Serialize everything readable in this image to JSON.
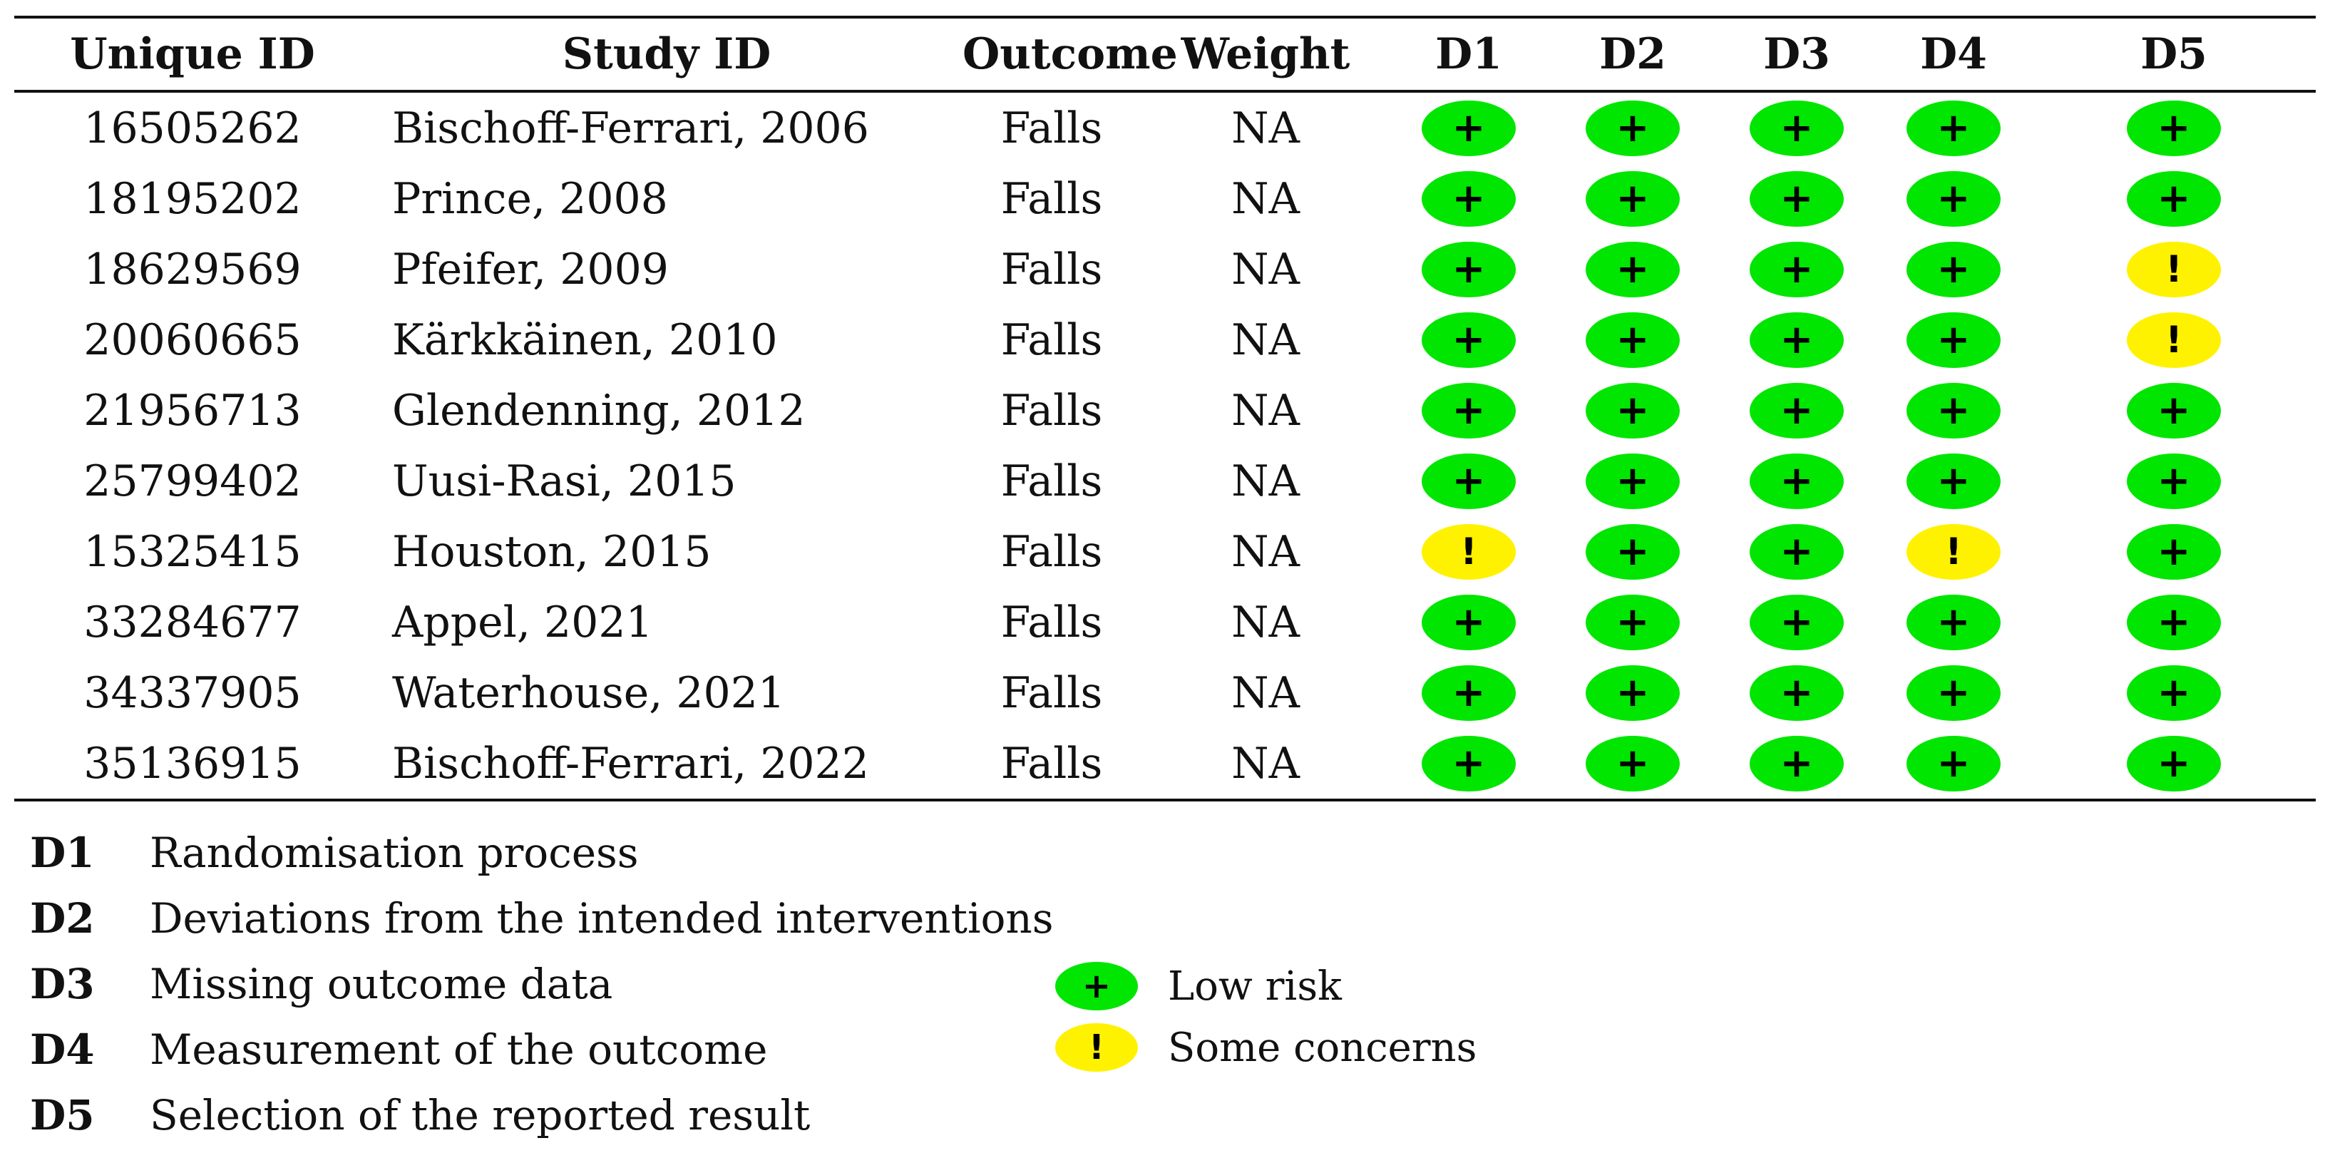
{
  "table": {
    "headers": [
      "Unique ID",
      "Study ID",
      "Outcome",
      "Weight",
      "D1",
      "D2",
      "D3",
      "D4",
      "D5"
    ],
    "rows": [
      {
        "id": "16505262",
        "study": "Bischoff-Ferrari, 2006",
        "outcome": "Falls",
        "weight": "NA",
        "d": [
          "+",
          "+",
          "+",
          "+",
          "+"
        ]
      },
      {
        "id": "18195202",
        "study": "Prince, 2008",
        "outcome": "Falls",
        "weight": "NA",
        "d": [
          "+",
          "+",
          "+",
          "+",
          "+"
        ]
      },
      {
        "id": "18629569",
        "study": "Pfeifer, 2009",
        "outcome": "Falls",
        "weight": "NA",
        "d": [
          "+",
          "+",
          "+",
          "+",
          "!"
        ]
      },
      {
        "id": "20060665",
        "study": "Kärkkäinen, 2010",
        "outcome": "Falls",
        "weight": "NA",
        "d": [
          "+",
          "+",
          "+",
          "+",
          "!"
        ]
      },
      {
        "id": "21956713",
        "study": "Glendenning, 2012",
        "outcome": "Falls",
        "weight": "NA",
        "d": [
          "+",
          "+",
          "+",
          "+",
          "+"
        ]
      },
      {
        "id": "25799402",
        "study": "Uusi-Rasi, 2015",
        "outcome": "Falls",
        "weight": "NA",
        "d": [
          "+",
          "+",
          "+",
          "+",
          "+"
        ]
      },
      {
        "id": "15325415",
        "study": "Houston, 2015",
        "outcome": "Falls",
        "weight": "NA",
        "d": [
          "!",
          "+",
          "+",
          "!",
          "+"
        ]
      },
      {
        "id": "33284677",
        "study": "Appel, 2021",
        "outcome": "Falls",
        "weight": "NA",
        "d": [
          "+",
          "+",
          "+",
          "+",
          "+"
        ]
      },
      {
        "id": "34337905",
        "study": "Waterhouse, 2021",
        "outcome": "Falls",
        "weight": "NA",
        "d": [
          "+",
          "+",
          "+",
          "+",
          "+"
        ]
      },
      {
        "id": "35136915",
        "study": "Bischoff-Ferrari, 2022",
        "outcome": "Falls",
        "weight": "NA",
        "d": [
          "+",
          "+",
          "+",
          "+",
          "+"
        ]
      }
    ]
  },
  "domains": [
    {
      "code": "D1",
      "label": "Randomisation process"
    },
    {
      "code": "D2",
      "label": "Deviations from the intended interventions"
    },
    {
      "code": "D3",
      "label": "Missing outcome data"
    },
    {
      "code": "D4",
      "label": "Measurement of the outcome"
    },
    {
      "code": "D5",
      "label": "Selection of the reported result"
    }
  ],
  "legend": [
    {
      "symbol": "+",
      "label": "Low risk",
      "color": "#00e600"
    },
    {
      "symbol": "!",
      "label": "Some concerns",
      "color": "#fff200"
    }
  ],
  "colors": {
    "low_risk": "#00e600",
    "some_concerns": "#fff200"
  }
}
